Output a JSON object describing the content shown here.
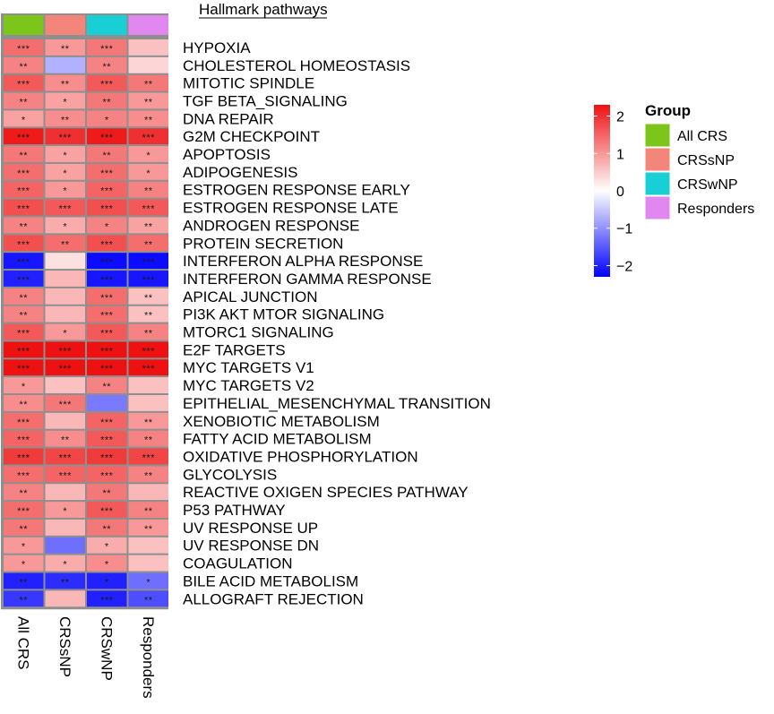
{
  "chart_data": {
    "type": "heatmap",
    "title": "Hallmark pathways",
    "columns": [
      "All CRS",
      "CRSsNP",
      "CRSwNP",
      "Responders"
    ],
    "column_group_colors": [
      "#7cc51a",
      "#f4857b",
      "#19cfd6",
      "#e087f0"
    ],
    "rows": [
      "HYPOXIA",
      "CHOLESTEROL HOMEOSTASIS",
      "MITOTIC SPINDLE",
      "TGF BETA_SIGNALING",
      "DNA REPAIR",
      "G2M CHECKPOINT",
      "APOPTOSIS",
      "ADIPOGENESIS",
      "ESTROGEN RESPONSE EARLY",
      "ESTROGEN RESPONSE LATE",
      "ANDROGEN RESPONSE",
      "PROTEIN SECRETION",
      "INTERFERON ALPHA RESPONSE",
      "INTERFERON GAMMA RESPONSE",
      "APICAL JUNCTION",
      "PI3K AKT MTOR SIGNALING",
      "MTORC1 SIGNALING",
      "E2F TARGETS",
      "MYC TARGETS V1",
      "MYC TARGETS V2",
      "EPITHELIAL_MESENCHYMAL TRANSITION",
      "XENOBIOTIC METABOLISM",
      "FATTY ACID METABOLISM",
      "OXIDATIVE PHOSPHORYLATION",
      "GLYCOLYSIS",
      "REACTIVE OXIGEN SPECIES PATHWAY",
      "P53 PATHWAY",
      "UV RESPONSE UP",
      "UV RESPONSE DN",
      "COAGULATION",
      "BILE ACID METABOLISM",
      "ALLOGRAFT REJECTION"
    ],
    "values": [
      [
        1.4,
        1.0,
        1.3,
        0.6
      ],
      [
        1.2,
        -0.7,
        1.2,
        0.4
      ],
      [
        1.6,
        1.1,
        1.6,
        1.3
      ],
      [
        1.2,
        0.9,
        1.3,
        1.0
      ],
      [
        0.9,
        1.1,
        1.2,
        1.1
      ],
      [
        2.2,
        2.0,
        2.2,
        2.0
      ],
      [
        1.3,
        0.9,
        1.3,
        1.0
      ],
      [
        1.4,
        0.9,
        1.4,
        1.0
      ],
      [
        1.5,
        1.0,
        1.5,
        1.2
      ],
      [
        1.7,
        1.6,
        1.7,
        1.6
      ],
      [
        1.2,
        0.8,
        1.2,
        0.9
      ],
      [
        1.7,
        1.4,
        1.7,
        1.4
      ],
      [
        -2.1,
        0.3,
        -2.2,
        -2.2
      ],
      [
        -2.0,
        0.7,
        -2.1,
        -2.1
      ],
      [
        1.2,
        0.7,
        1.4,
        0.6
      ],
      [
        1.2,
        0.7,
        1.4,
        0.6
      ],
      [
        1.6,
        1.0,
        1.6,
        1.2
      ],
      [
        2.3,
        2.3,
        2.3,
        2.3
      ],
      [
        2.3,
        2.3,
        2.3,
        2.4
      ],
      [
        1.0,
        0.6,
        1.2,
        0.6
      ],
      [
        1.1,
        1.3,
        -1.2,
        0.6
      ],
      [
        1.4,
        0.7,
        1.5,
        1.0
      ],
      [
        1.5,
        1.1,
        1.6,
        1.2
      ],
      [
        1.9,
        1.8,
        1.9,
        1.8
      ],
      [
        1.4,
        1.5,
        1.5,
        1.2
      ],
      [
        1.2,
        0.7,
        1.3,
        0.7
      ],
      [
        1.4,
        1.0,
        1.6,
        1.2
      ],
      [
        1.3,
        0.7,
        1.3,
        1.0
      ],
      [
        1.0,
        -1.3,
        0.8,
        0.6
      ],
      [
        1.0,
        0.8,
        1.1,
        0.6
      ],
      [
        -2.0,
        -1.9,
        -2.0,
        -1.3
      ],
      [
        -1.8,
        0.7,
        -2.0,
        -1.6
      ]
    ],
    "significance": [
      [
        "***",
        "**",
        "***",
        ""
      ],
      [
        "**",
        "",
        "**",
        ""
      ],
      [
        "***",
        "**",
        "***",
        "**"
      ],
      [
        "**",
        "*",
        "**",
        "**"
      ],
      [
        "*",
        "**",
        "*",
        "**"
      ],
      [
        "***",
        "***",
        "***",
        "***"
      ],
      [
        "**",
        "*",
        "**",
        "*"
      ],
      [
        "***",
        "*",
        "***",
        "*"
      ],
      [
        "***",
        "*",
        "***",
        "**"
      ],
      [
        "***",
        "***",
        "***",
        "***"
      ],
      [
        "**",
        "*",
        "*",
        "**"
      ],
      [
        "***",
        "**",
        "***",
        "**"
      ],
      [
        "***",
        "",
        "***",
        "***"
      ],
      [
        "***",
        "",
        "***",
        "***"
      ],
      [
        "**",
        "",
        "***",
        "**"
      ],
      [
        "**",
        "",
        "***",
        "**"
      ],
      [
        "***",
        "*",
        "***",
        "**"
      ],
      [
        "***",
        "***",
        "***",
        "***"
      ],
      [
        "***",
        "***",
        "***",
        "***"
      ],
      [
        "*",
        "",
        "**",
        ""
      ],
      [
        "**",
        "***",
        "",
        ""
      ],
      [
        "***",
        "",
        "***",
        "**"
      ],
      [
        "***",
        "**",
        "***",
        "**"
      ],
      [
        "***",
        "***",
        "***",
        "***"
      ],
      [
        "***",
        "***",
        "***",
        "**"
      ],
      [
        "**",
        "",
        "**",
        ""
      ],
      [
        "***",
        "*",
        "***",
        "**"
      ],
      [
        "**",
        "",
        "**",
        "**"
      ],
      [
        "*",
        "",
        "*",
        ""
      ],
      [
        "*",
        "*",
        "*",
        ""
      ],
      [
        "**",
        "**",
        "*",
        "*"
      ],
      [
        "**",
        "",
        "***",
        "**"
      ]
    ],
    "color_scale": {
      "min": -2.3,
      "max": 2.3,
      "low_color": "#0000ff",
      "mid_color": "#ffffff",
      "high_color": "#ee1111",
      "ticks": [
        2,
        1,
        0,
        -1,
        -2
      ],
      "tick_labels": [
        "2",
        "1",
        "0",
        "−1",
        "−2"
      ]
    },
    "legend": {
      "title": "Group",
      "entries": [
        "All CRS",
        "CRSsNP",
        "CRSwNP",
        "Responders"
      ],
      "colors": [
        "#7cc51a",
        "#f4857b",
        "#19cfd6",
        "#e087f0"
      ]
    }
  }
}
